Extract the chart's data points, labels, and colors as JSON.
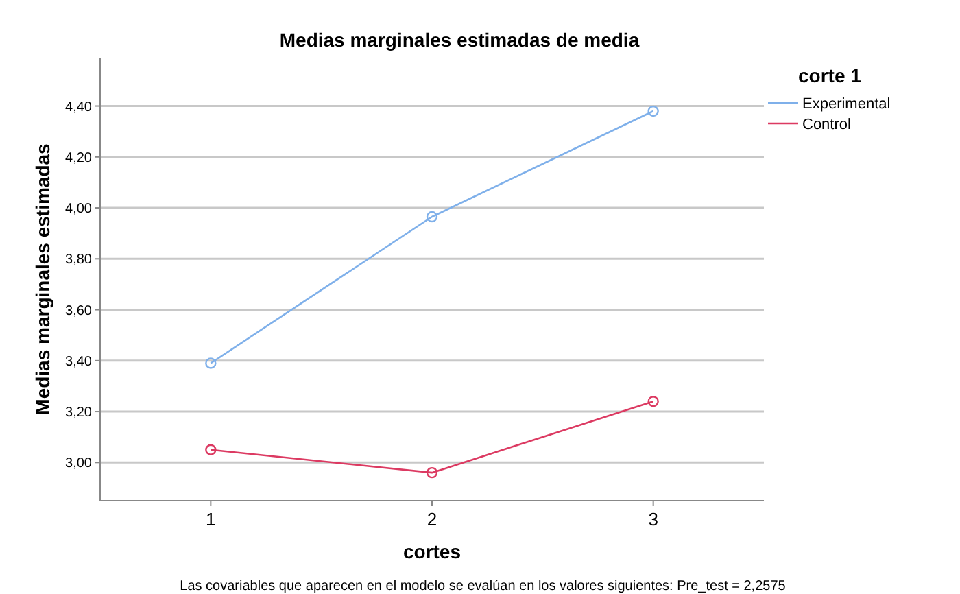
{
  "chart_data": {
    "type": "line",
    "title": "Medias marginales estimadas de media",
    "xlabel": "cortes",
    "ylabel": "Medias marginales estimadas",
    "legend_title": "corte 1",
    "categories": [
      "1",
      "2",
      "3"
    ],
    "series": [
      {
        "name": "Experimental",
        "color": "#7fb0ea",
        "values": [
          3.39,
          3.965,
          4.38
        ]
      },
      {
        "name": "Control",
        "color": "#dc3a62",
        "values": [
          3.05,
          2.96,
          3.24
        ]
      }
    ],
    "ylim": [
      2.85,
      4.59
    ],
    "yticks": [
      {
        "value": 3.0,
        "label": "3,00"
      },
      {
        "value": 3.2,
        "label": "3,20"
      },
      {
        "value": 3.4,
        "label": "3,40"
      },
      {
        "value": 3.6,
        "label": "3,60"
      },
      {
        "value": 3.8,
        "label": "3,80"
      },
      {
        "value": 4.0,
        "label": "4,00"
      },
      {
        "value": 4.2,
        "label": "4,20"
      },
      {
        "value": 4.4,
        "label": "4,40"
      }
    ],
    "grid": "y",
    "legend": "top right",
    "marker": "circle",
    "line_style": "solid",
    "annotations": [
      "Las covariables que aparecen en el modelo se evalúan en los valores siguientes: Pre_test = 2,2575"
    ]
  }
}
